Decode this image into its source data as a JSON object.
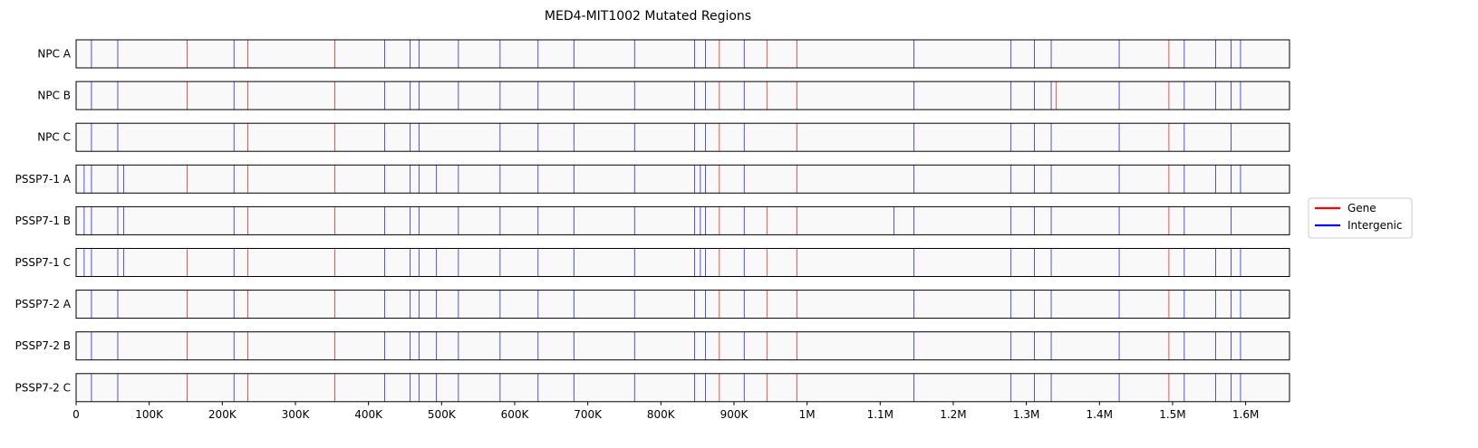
{
  "chart_data": {
    "type": "event-strip",
    "title": "MED4-MIT1002 Mutated Regions",
    "xlabel": "",
    "ylabel": "",
    "xlim": [
      0,
      1660000
    ],
    "xticks": [
      {
        "value": 0,
        "label": "0"
      },
      {
        "value": 100000,
        "label": "100K"
      },
      {
        "value": 200000,
        "label": "200K"
      },
      {
        "value": 300000,
        "label": "300K"
      },
      {
        "value": 400000,
        "label": "400K"
      },
      {
        "value": 500000,
        "label": "500K"
      },
      {
        "value": 600000,
        "label": "600K"
      },
      {
        "value": 700000,
        "label": "700K"
      },
      {
        "value": 800000,
        "label": "800K"
      },
      {
        "value": 900000,
        "label": "900K"
      },
      {
        "value": 1000000,
        "label": "1M"
      },
      {
        "value": 1100000,
        "label": "1.1M"
      },
      {
        "value": 1200000,
        "label": "1.2M"
      },
      {
        "value": 1300000,
        "label": "1.3M"
      },
      {
        "value": 1400000,
        "label": "1.4M"
      },
      {
        "value": 1500000,
        "label": "1.5M"
      },
      {
        "value": 1600000,
        "label": "1.6M"
      }
    ],
    "legend": {
      "placement": "right",
      "entries": [
        {
          "label": "Gene",
          "color": "#ff0000"
        },
        {
          "label": "Intergenic",
          "color": "#0000ff"
        }
      ]
    },
    "colors": {
      "gene": "#ff0000",
      "intergenic": "#0000ff",
      "strip_background": "#f9f9f9"
    },
    "series": [
      {
        "name": "NPC A",
        "gene": [
          152000,
          235000,
          354000,
          880000,
          945000,
          986000,
          1495000
        ],
        "intergenic": [
          21000,
          57000,
          216000,
          422000,
          457000,
          469000,
          523000,
          580000,
          632000,
          681000,
          764000,
          846000,
          861000,
          914000,
          1146000,
          1279000,
          1311000,
          1334000,
          1427000,
          1516000,
          1559000,
          1580000,
          1593000
        ]
      },
      {
        "name": "NPC B",
        "gene": [
          152000,
          235000,
          354000,
          880000,
          945000,
          986000,
          1341000,
          1495000
        ],
        "intergenic": [
          21000,
          57000,
          216000,
          422000,
          457000,
          469000,
          523000,
          580000,
          632000,
          681000,
          764000,
          846000,
          861000,
          914000,
          1146000,
          1279000,
          1311000,
          1334000,
          1427000,
          1516000,
          1559000,
          1580000,
          1593000
        ]
      },
      {
        "name": "NPC C",
        "gene": [
          235000,
          354000,
          880000,
          986000,
          1495000
        ],
        "intergenic": [
          21000,
          57000,
          216000,
          422000,
          457000,
          469000,
          580000,
          632000,
          681000,
          764000,
          846000,
          861000,
          914000,
          1146000,
          1279000,
          1311000,
          1334000,
          1427000,
          1516000,
          1580000
        ]
      },
      {
        "name": "PSSP7-1 A",
        "gene": [
          152000,
          235000,
          354000,
          880000,
          986000,
          1495000
        ],
        "intergenic": [
          11000,
          21000,
          57000,
          65000,
          216000,
          422000,
          457000,
          469000,
          493000,
          523000,
          580000,
          632000,
          681000,
          764000,
          846000,
          854000,
          861000,
          914000,
          1146000,
          1279000,
          1311000,
          1334000,
          1427000,
          1516000,
          1559000,
          1580000,
          1593000
        ]
      },
      {
        "name": "PSSP7-1 B",
        "gene": [
          235000,
          354000,
          880000,
          945000,
          986000,
          1495000
        ],
        "intergenic": [
          11000,
          21000,
          57000,
          65000,
          216000,
          422000,
          457000,
          469000,
          523000,
          580000,
          632000,
          681000,
          764000,
          846000,
          854000,
          861000,
          914000,
          1119000,
          1146000,
          1279000,
          1311000,
          1334000,
          1427000,
          1516000,
          1580000
        ]
      },
      {
        "name": "PSSP7-1 C",
        "gene": [
          152000,
          235000,
          354000,
          880000,
          945000,
          986000,
          1495000
        ],
        "intergenic": [
          11000,
          21000,
          57000,
          65000,
          216000,
          422000,
          457000,
          469000,
          493000,
          523000,
          580000,
          632000,
          681000,
          764000,
          846000,
          854000,
          861000,
          914000,
          1146000,
          1279000,
          1311000,
          1334000,
          1427000,
          1516000,
          1559000,
          1580000,
          1593000
        ]
      },
      {
        "name": "PSSP7-2 A",
        "gene": [
          152000,
          235000,
          354000,
          880000,
          945000,
          986000,
          1495000
        ],
        "intergenic": [
          21000,
          57000,
          216000,
          422000,
          457000,
          469000,
          493000,
          523000,
          580000,
          632000,
          681000,
          764000,
          846000,
          861000,
          914000,
          1146000,
          1279000,
          1311000,
          1334000,
          1427000,
          1516000,
          1559000,
          1580000,
          1593000
        ]
      },
      {
        "name": "PSSP7-2 B",
        "gene": [
          152000,
          235000,
          354000,
          880000,
          945000,
          986000,
          1495000
        ],
        "intergenic": [
          21000,
          57000,
          216000,
          422000,
          457000,
          469000,
          493000,
          523000,
          580000,
          632000,
          681000,
          764000,
          846000,
          861000,
          914000,
          1146000,
          1279000,
          1311000,
          1334000,
          1427000,
          1516000,
          1559000,
          1580000,
          1593000
        ]
      },
      {
        "name": "PSSP7-2 C",
        "gene": [
          152000,
          235000,
          354000,
          880000,
          945000,
          986000,
          1495000
        ],
        "intergenic": [
          21000,
          57000,
          216000,
          422000,
          457000,
          469000,
          493000,
          523000,
          580000,
          632000,
          681000,
          764000,
          846000,
          861000,
          914000,
          1146000,
          1279000,
          1311000,
          1334000,
          1427000,
          1516000,
          1559000,
          1580000,
          1593000
        ]
      }
    ]
  }
}
